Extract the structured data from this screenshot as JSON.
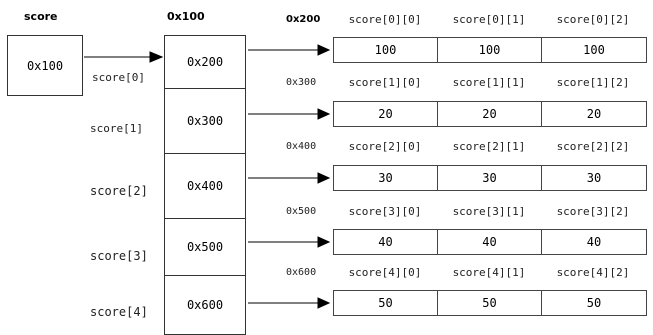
{
  "score_var": {
    "name": "score",
    "value": "0x100"
  },
  "pointer_array": {
    "address": "0x100",
    "cells": [
      {
        "label": "score[0]",
        "value": "0x200"
      },
      {
        "label": "score[1]",
        "value": "0x300"
      },
      {
        "label": "score[2]",
        "value": "0x400"
      },
      {
        "label": "score[3]",
        "value": "0x500"
      },
      {
        "label": "score[4]",
        "value": "0x600"
      }
    ]
  },
  "rows": [
    {
      "address": "0x200",
      "headers": [
        "score[0][0]",
        "score[0][1]",
        "score[0][2]"
      ],
      "values": [
        "100",
        "100",
        "100"
      ]
    },
    {
      "address": "0x300",
      "headers": [
        "score[1][0]",
        "score[1][1]",
        "score[1][2]"
      ],
      "values": [
        "20",
        "20",
        "20"
      ]
    },
    {
      "address": "0x400",
      "headers": [
        "score[2][0]",
        "score[2][1]",
        "score[2][2]"
      ],
      "values": [
        "30",
        "30",
        "30"
      ]
    },
    {
      "address": "0x500",
      "headers": [
        "score[3][0]",
        "score[3][1]",
        "score[3][2]"
      ],
      "values": [
        "40",
        "40",
        "40"
      ]
    },
    {
      "address": "0x600",
      "headers": [
        "score[4][0]",
        "score[4][1]",
        "score[4][2]"
      ],
      "values": [
        "50",
        "50",
        "50"
      ]
    }
  ]
}
